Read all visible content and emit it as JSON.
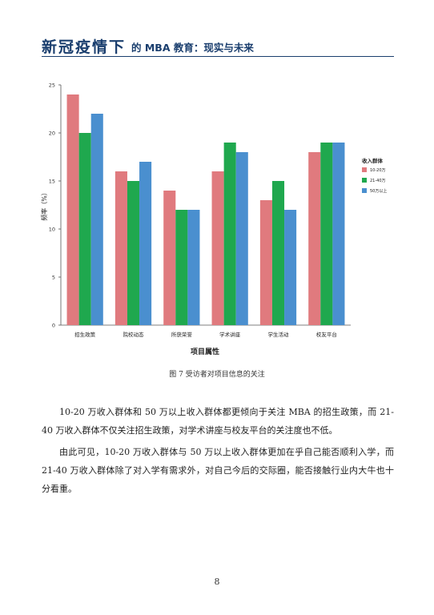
{
  "header": {
    "calligraphy": "新冠疫情下",
    "subtitle": "的 MBA 教育：现实与未来"
  },
  "caption": "图 7 受访者对项目信息的关注",
  "paragraphs": [
    "10-20 万收入群体和 50 万以上收入群体都更倾向于关注 MBA 的招生政策，而 21-40 万收入群体不仅关注招生政策，对学术讲座与校友平台的关注度也不低。",
    "由此可见，10-20 万收入群体与 50 万以上收入群体更加在乎自己能否顺利入学，而 21-40 万收入群体除了对入学有需求外，对自己今后的交际圈，能否接触行业内大牛也十分看重。"
  ],
  "page_number": "8",
  "chart_data": {
    "type": "bar",
    "title": "",
    "xlabel": "项目属性",
    "ylabel": "频率（%）",
    "ylim": [
      0,
      25
    ],
    "yticks": [
      0,
      5,
      10,
      15,
      20,
      25
    ],
    "grid": false,
    "legend_position": "right",
    "legend_title": "收入群体",
    "categories": [
      "招生政策",
      "院校动态",
      "所获荣誉",
      "学术讲座",
      "学生活动",
      "校友平台"
    ],
    "series": [
      {
        "name": "10-20万",
        "color": "#e07a7e",
        "values": [
          24,
          16,
          14,
          16,
          13,
          18
        ]
      },
      {
        "name": "21-40万",
        "color": "#1fa84e",
        "values": [
          20,
          15,
          12,
          19,
          15,
          19
        ]
      },
      {
        "name": "50万以上",
        "color": "#4a8fcf",
        "values": [
          22,
          17,
          12,
          18,
          12,
          19
        ]
      }
    ]
  }
}
